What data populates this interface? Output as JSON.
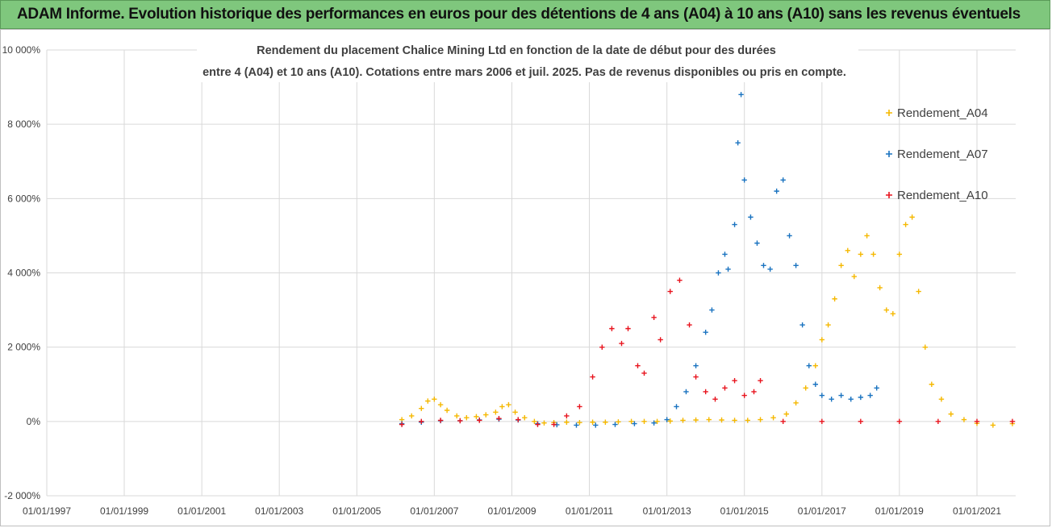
{
  "banner": {
    "title": "ADAM Informe. Evolution historique des performances en euros pour des détentions de 4 ans (A04) à 10 ans (A10) sans les revenus éventuels"
  },
  "colors": {
    "banner_bg": "#7fc77d",
    "A04": "#f5b800",
    "A07": "#1a73c0",
    "A10": "#e8141e",
    "grid": "#d9d9d9"
  },
  "chart_data": {
    "type": "scatter",
    "title_lines": [
      "Rendement du placement Chalice Mining Ltd en fonction de la date de début pour des durées",
      "entre 4 (A04) et 10 ans (A10). Cotations entre mars 2006 et juil. 2025. Pas de revenus disponibles ou pris en compte."
    ],
    "y_unit": "%",
    "ylim": [
      -2000,
      10000
    ],
    "yticks": [
      -2000,
      0,
      2000,
      4000,
      6000,
      8000,
      10000
    ],
    "ytick_labels": [
      "-2 000%",
      "0%",
      "2 000%",
      "4 000%",
      "6 000%",
      "8 000%",
      "10 000%"
    ],
    "xlim": [
      "1997-01-01",
      "2022-01-01"
    ],
    "xtick_labels": [
      "01/01/1997",
      "01/01/1999",
      "01/01/2001",
      "01/01/2003",
      "01/01/2005",
      "01/01/2007",
      "01/01/2009",
      "01/01/2011",
      "01/01/2013",
      "01/01/2015",
      "01/01/2017",
      "01/01/2019",
      "01/01/2021"
    ],
    "grid": true,
    "legend_position": "right",
    "marker": "+",
    "series": [
      {
        "name": "Rendement_A04",
        "points": [
          [
            "2006-03-01",
            50
          ],
          [
            "2006-06-01",
            150
          ],
          [
            "2006-09-01",
            350
          ],
          [
            "2006-11-01",
            550
          ],
          [
            "2007-01-01",
            600
          ],
          [
            "2007-03-01",
            450
          ],
          [
            "2007-05-01",
            300
          ],
          [
            "2007-08-01",
            150
          ],
          [
            "2007-11-01",
            100
          ],
          [
            "2008-02-01",
            130
          ],
          [
            "2008-05-01",
            180
          ],
          [
            "2008-08-01",
            250
          ],
          [
            "2008-10-01",
            400
          ],
          [
            "2008-12-01",
            450
          ],
          [
            "2009-02-01",
            250
          ],
          [
            "2009-05-01",
            100
          ],
          [
            "2009-08-01",
            0
          ],
          [
            "2009-11-01",
            -40
          ],
          [
            "2010-02-01",
            -30
          ],
          [
            "2010-06-01",
            -20
          ],
          [
            "2010-10-01",
            -30
          ],
          [
            "2011-02-01",
            -20
          ],
          [
            "2011-06-01",
            -20
          ],
          [
            "2011-10-01",
            -10
          ],
          [
            "2012-02-01",
            0
          ],
          [
            "2012-06-01",
            0
          ],
          [
            "2012-10-01",
            0
          ],
          [
            "2013-02-01",
            10
          ],
          [
            "2013-06-01",
            30
          ],
          [
            "2013-10-01",
            40
          ],
          [
            "2014-02-01",
            50
          ],
          [
            "2014-06-01",
            40
          ],
          [
            "2014-10-01",
            30
          ],
          [
            "2015-02-01",
            30
          ],
          [
            "2015-06-01",
            50
          ],
          [
            "2015-10-01",
            100
          ],
          [
            "2016-02-01",
            200
          ],
          [
            "2016-05-01",
            500
          ],
          [
            "2016-08-01",
            900
          ],
          [
            "2016-11-01",
            1500
          ],
          [
            "2017-01-01",
            2200
          ],
          [
            "2017-03-01",
            2600
          ],
          [
            "2017-05-01",
            3300
          ],
          [
            "2017-07-01",
            4200
          ],
          [
            "2017-09-01",
            4600
          ],
          [
            "2017-11-01",
            3900
          ],
          [
            "2018-01-01",
            4500
          ],
          [
            "2018-03-01",
            5000
          ],
          [
            "2018-05-01",
            4500
          ],
          [
            "2018-07-01",
            3600
          ],
          [
            "2018-09-01",
            3000
          ],
          [
            "2018-11-01",
            2900
          ],
          [
            "2019-01-01",
            4500
          ],
          [
            "2019-03-01",
            5300
          ],
          [
            "2019-05-01",
            5500
          ],
          [
            "2019-07-01",
            3500
          ],
          [
            "2019-09-01",
            2000
          ],
          [
            "2019-11-01",
            1000
          ],
          [
            "2020-02-01",
            600
          ],
          [
            "2020-05-01",
            200
          ],
          [
            "2020-09-01",
            50
          ],
          [
            "2021-01-01",
            -50
          ],
          [
            "2021-06-01",
            -100
          ],
          [
            "2021-12-01",
            -60
          ]
        ]
      },
      {
        "name": "Rendement_A07",
        "points": [
          [
            "2006-03-01",
            -60
          ],
          [
            "2006-09-01",
            -20
          ],
          [
            "2007-03-01",
            20
          ],
          [
            "2007-09-01",
            20
          ],
          [
            "2008-03-01",
            40
          ],
          [
            "2008-09-01",
            60
          ],
          [
            "2009-03-01",
            40
          ],
          [
            "2009-09-01",
            -60
          ],
          [
            "2010-03-01",
            -90
          ],
          [
            "2010-09-01",
            -100
          ],
          [
            "2011-03-01",
            -100
          ],
          [
            "2011-09-01",
            -80
          ],
          [
            "2012-03-01",
            -60
          ],
          [
            "2012-09-01",
            -40
          ],
          [
            "2013-01-01",
            50
          ],
          [
            "2013-04-01",
            400
          ],
          [
            "2013-07-01",
            800
          ],
          [
            "2013-10-01",
            1500
          ],
          [
            "2014-01-01",
            2400
          ],
          [
            "2014-03-01",
            3000
          ],
          [
            "2014-05-01",
            4000
          ],
          [
            "2014-07-01",
            4500
          ],
          [
            "2014-08-01",
            4100
          ],
          [
            "2014-10-01",
            5300
          ],
          [
            "2014-11-01",
            7500
          ],
          [
            "2014-12-01",
            8800
          ],
          [
            "2015-01-01",
            6500
          ],
          [
            "2015-03-01",
            5500
          ],
          [
            "2015-05-01",
            4800
          ],
          [
            "2015-07-01",
            4200
          ],
          [
            "2015-09-01",
            4100
          ],
          [
            "2015-11-01",
            6200
          ],
          [
            "2016-01-01",
            6500
          ],
          [
            "2016-03-01",
            5000
          ],
          [
            "2016-05-01",
            4200
          ],
          [
            "2016-07-01",
            2600
          ],
          [
            "2016-09-01",
            1500
          ],
          [
            "2016-11-01",
            1000
          ],
          [
            "2017-01-01",
            700
          ],
          [
            "2017-04-01",
            600
          ],
          [
            "2017-07-01",
            700
          ],
          [
            "2017-10-01",
            600
          ],
          [
            "2018-01-01",
            650
          ],
          [
            "2018-04-01",
            700
          ],
          [
            "2018-06-01",
            900
          ]
        ]
      },
      {
        "name": "Rendement_A10",
        "points": [
          [
            "2006-03-01",
            -80
          ],
          [
            "2006-09-01",
            0
          ],
          [
            "2007-03-01",
            30
          ],
          [
            "2007-09-01",
            20
          ],
          [
            "2008-03-01",
            30
          ],
          [
            "2008-09-01",
            80
          ],
          [
            "2009-03-01",
            50
          ],
          [
            "2009-09-01",
            -80
          ],
          [
            "2010-02-01",
            -80
          ],
          [
            "2010-06-01",
            150
          ],
          [
            "2010-10-01",
            400
          ],
          [
            "2011-02-01",
            1200
          ],
          [
            "2011-05-01",
            2000
          ],
          [
            "2011-08-01",
            2500
          ],
          [
            "2011-11-01",
            2100
          ],
          [
            "2012-01-01",
            2500
          ],
          [
            "2012-04-01",
            1500
          ],
          [
            "2012-06-01",
            1300
          ],
          [
            "2012-09-01",
            2800
          ],
          [
            "2012-11-01",
            2200
          ],
          [
            "2013-02-01",
            3500
          ],
          [
            "2013-05-01",
            3800
          ],
          [
            "2013-08-01",
            2600
          ],
          [
            "2013-10-01",
            1200
          ],
          [
            "2014-01-01",
            800
          ],
          [
            "2014-04-01",
            600
          ],
          [
            "2014-07-01",
            900
          ],
          [
            "2014-10-01",
            1100
          ],
          [
            "2015-01-01",
            700
          ],
          [
            "2015-04-01",
            800
          ],
          [
            "2015-06-01",
            1100
          ],
          [
            "2016-01-01",
            0
          ],
          [
            "2017-01-01",
            0
          ],
          [
            "2018-01-01",
            0
          ],
          [
            "2019-01-01",
            0
          ],
          [
            "2020-01-01",
            0
          ],
          [
            "2021-01-01",
            0
          ],
          [
            "2021-12-01",
            0
          ]
        ]
      }
    ]
  }
}
